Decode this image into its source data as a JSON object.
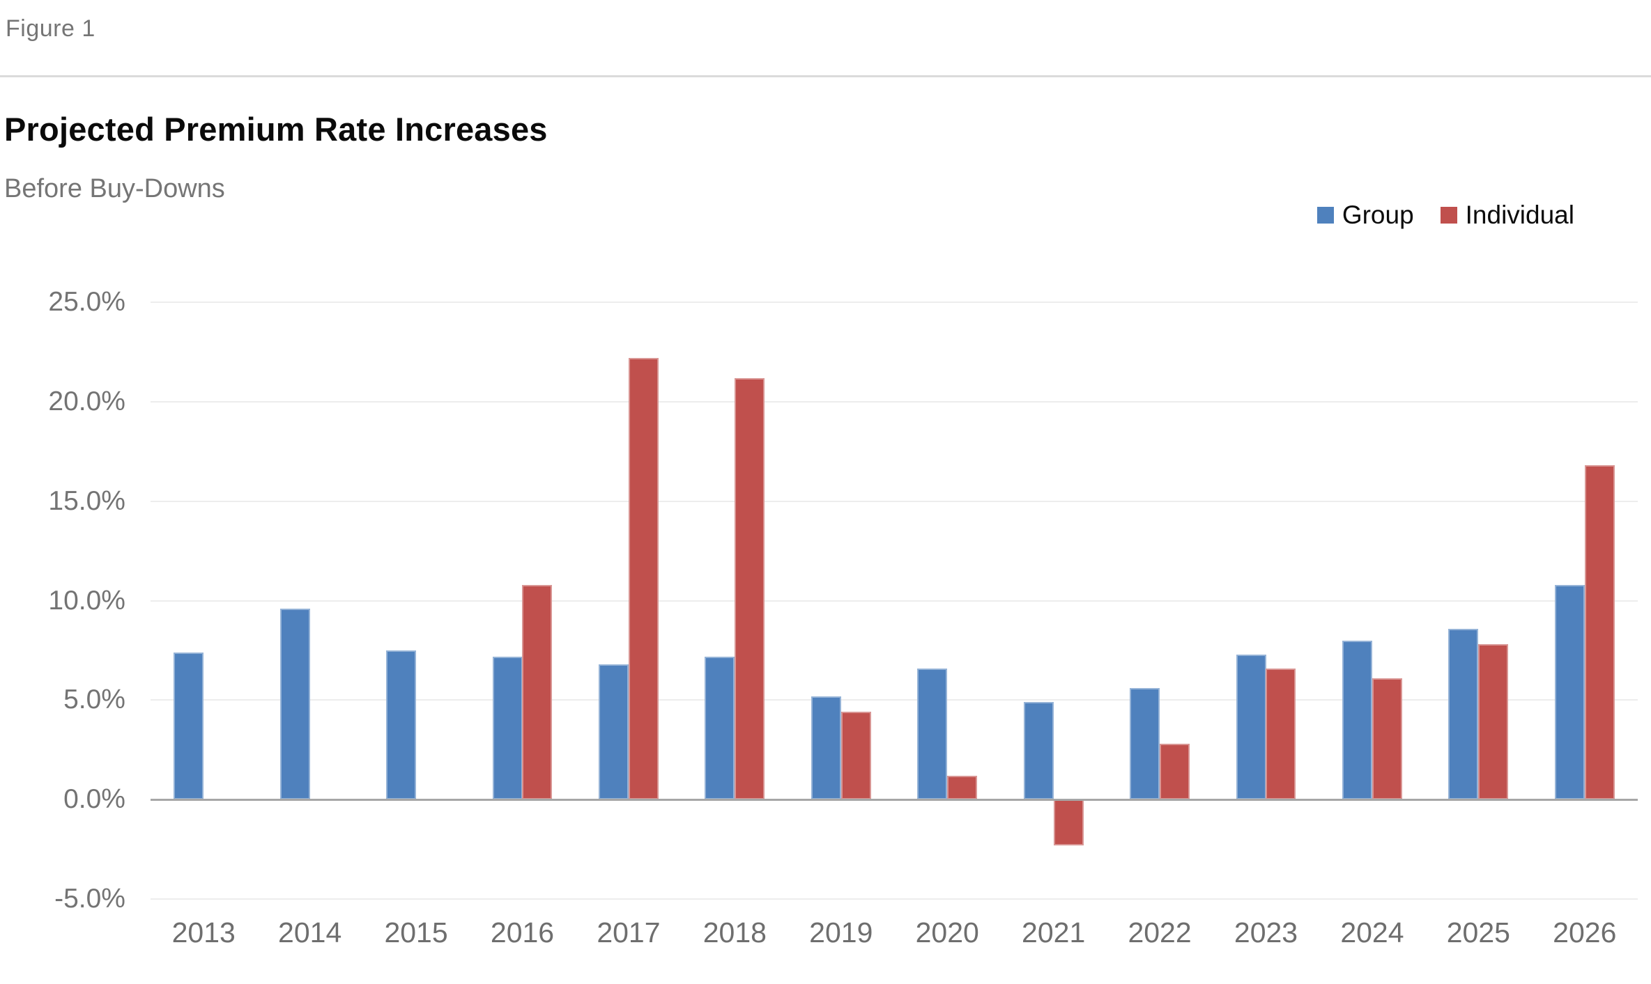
{
  "header": {
    "figure_label": "Figure 1",
    "title": "Projected Premium Rate Increases",
    "subtitle": "Before Buy-Downs"
  },
  "legend": {
    "items": [
      {
        "label": "Group",
        "color": "#4F81BD"
      },
      {
        "label": "Individual",
        "color": "#C0504D"
      }
    ]
  },
  "colors": {
    "group_bar": "#4F81BD",
    "individual_bar": "#C0504D",
    "zero_axis": "#A6A6A6",
    "gridline": "#EDEDED",
    "tick_text": "#737373",
    "muted_text": "#757575",
    "divider": "#DBDBDB",
    "title_text": "#0B0B0B"
  },
  "chart_data": {
    "type": "bar",
    "title": "Projected Premium Rate Increases",
    "subtitle": "Before Buy-Downs",
    "categories": [
      "2013",
      "2014",
      "2015",
      "2016",
      "2017",
      "2018",
      "2019",
      "2020",
      "2021",
      "2022",
      "2023",
      "2024",
      "2025",
      "2026"
    ],
    "series": [
      {
        "name": "Group",
        "color": "#4F81BD",
        "values": [
          7.4,
          9.6,
          7.5,
          7.2,
          6.8,
          7.2,
          5.2,
          6.6,
          4.9,
          5.6,
          7.3,
          8.0,
          8.6,
          10.8
        ]
      },
      {
        "name": "Individual",
        "color": "#C0504D",
        "values": [
          null,
          null,
          null,
          10.8,
          22.2,
          21.2,
          4.4,
          1.2,
          -2.3,
          2.8,
          6.6,
          6.1,
          7.8,
          16.8
        ]
      }
    ],
    "y_unit": "%",
    "ylim": [
      -5,
      25
    ],
    "y_tick_step": 5,
    "y_tick_labels": [
      "25.0%",
      "20.0%",
      "15.0%",
      "10.0%",
      "5.0%",
      "0.0%",
      "-5.0%"
    ],
    "grid": true,
    "legend_position": "top-right",
    "xlabel": "",
    "ylabel": ""
  }
}
